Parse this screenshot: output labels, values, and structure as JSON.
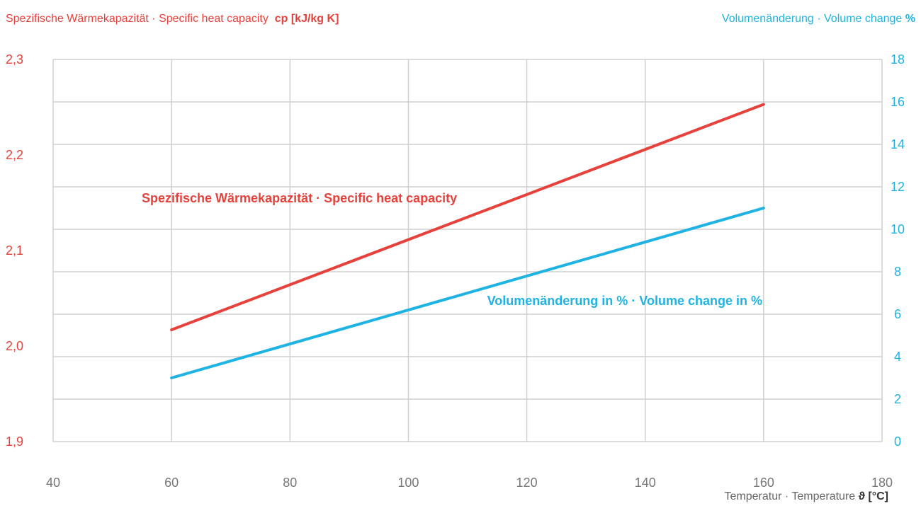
{
  "header": {
    "left_text": "Spezifische Wärmekapazität · Specific heat capacity",
    "left_unit": "cp [kJ/kg K]",
    "right_text": "Volumenänderung · Volume change",
    "right_unit": "%"
  },
  "x_axis_title": {
    "text": "Temperatur · Temperature",
    "unit": "ϑ [°C]"
  },
  "chart_data": {
    "type": "line",
    "xlim": [
      40,
      180
    ],
    "x_ticks": [
      40,
      60,
      80,
      100,
      120,
      140,
      160,
      180
    ],
    "y_left": {
      "range": [
        1.9,
        2.3
      ],
      "ticks": [
        "2,3",
        "2,2",
        "2,1",
        "2,0",
        "1,9"
      ],
      "tick_values": [
        2.3,
        2.2,
        2.1,
        2.0,
        1.9
      ],
      "color": "#e6413b"
    },
    "y_right": {
      "range": [
        0,
        18
      ],
      "ticks": [
        0,
        2,
        4,
        6,
        8,
        10,
        12,
        14,
        16,
        18
      ],
      "color": "#1fb3e3"
    },
    "grid": true,
    "series": [
      {
        "name": "Spezifische Wärmekapazität · Specific heat capacity",
        "axis": "left",
        "color": "#e6413b",
        "x": [
          60,
          160
        ],
        "y": [
          2.017,
          2.253
        ]
      },
      {
        "name": "Volumenänderung in % · Volume change in %",
        "axis": "right",
        "color": "#1fb3e3",
        "x": [
          60,
          160
        ],
        "y": [
          3,
          11
        ]
      }
    ]
  }
}
